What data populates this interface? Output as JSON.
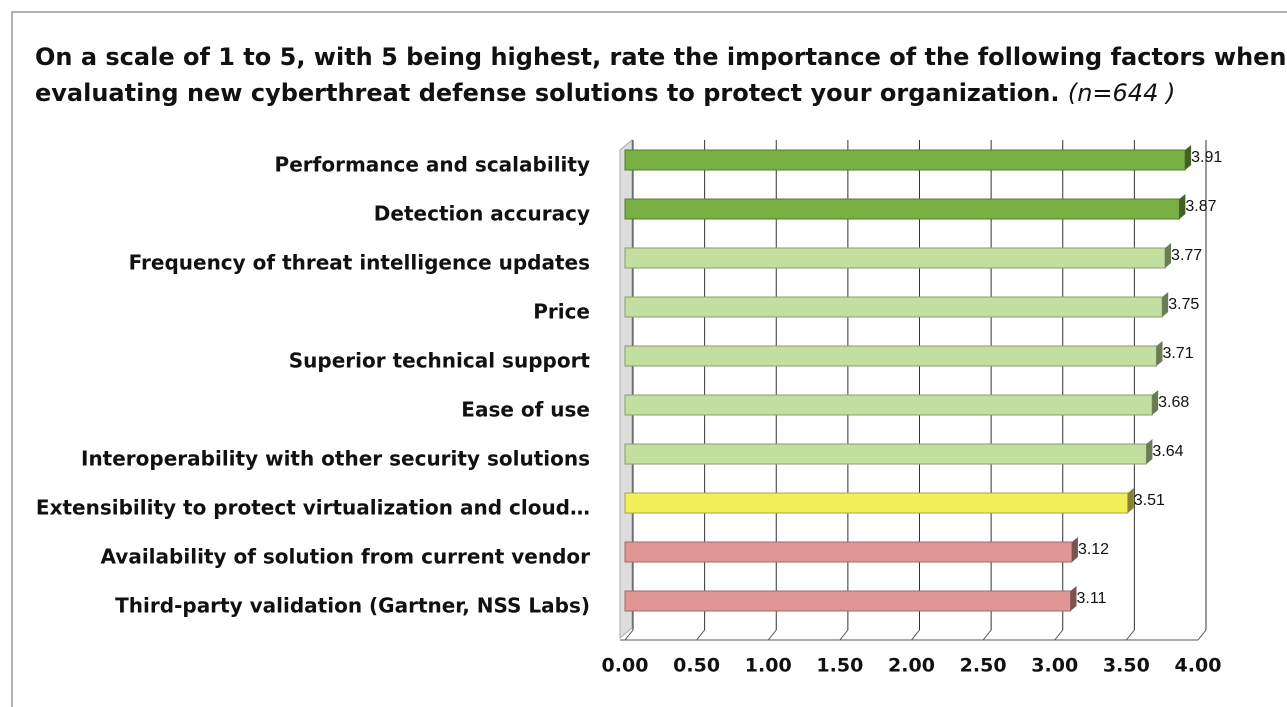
{
  "chart_data": {
    "type": "bar",
    "orientation": "horizontal",
    "title": "On a scale of 1 to 5, with 5 being highest, rate the importance of the following factors when",
    "title_line2": "evaluating new cyberthreat defense solutions to protect your organization.",
    "note": "(n=644 )",
    "categories": [
      "Performance and scalability",
      "Detection accuracy",
      "Frequency of threat intelligence updates",
      "Price",
      "Superior technical support",
      "Ease of use",
      "Interoperability with other security solutions",
      "Extensibility to protect virtualization and cloud…",
      "Availability of solution from current vendor",
      "Third-party validation (Gartner, NSS Labs)"
    ],
    "values": [
      3.91,
      3.87,
      3.77,
      3.75,
      3.71,
      3.68,
      3.64,
      3.51,
      3.12,
      3.11
    ],
    "colors": [
      "#78b043",
      "#78b043",
      "#c3df9f",
      "#c3df9f",
      "#c3df9f",
      "#c3df9f",
      "#c3df9f",
      "#f2ef5a",
      "#e19696",
      "#e19696"
    ],
    "xlim": [
      0,
      4
    ],
    "xticks": [
      {
        "value": 0,
        "label": "0.00"
      },
      {
        "value": 0.5,
        "label": "0.50"
      },
      {
        "value": 1,
        "label": "1.00"
      },
      {
        "value": 1.5,
        "label": "1.50"
      },
      {
        "value": 2,
        "label": "2.00"
      },
      {
        "value": 2.5,
        "label": "2.50"
      },
      {
        "value": 3,
        "label": "3.00"
      },
      {
        "value": 3.5,
        "label": "3.50"
      },
      {
        "value": 4,
        "label": "4.00"
      }
    ],
    "grid": true
  }
}
